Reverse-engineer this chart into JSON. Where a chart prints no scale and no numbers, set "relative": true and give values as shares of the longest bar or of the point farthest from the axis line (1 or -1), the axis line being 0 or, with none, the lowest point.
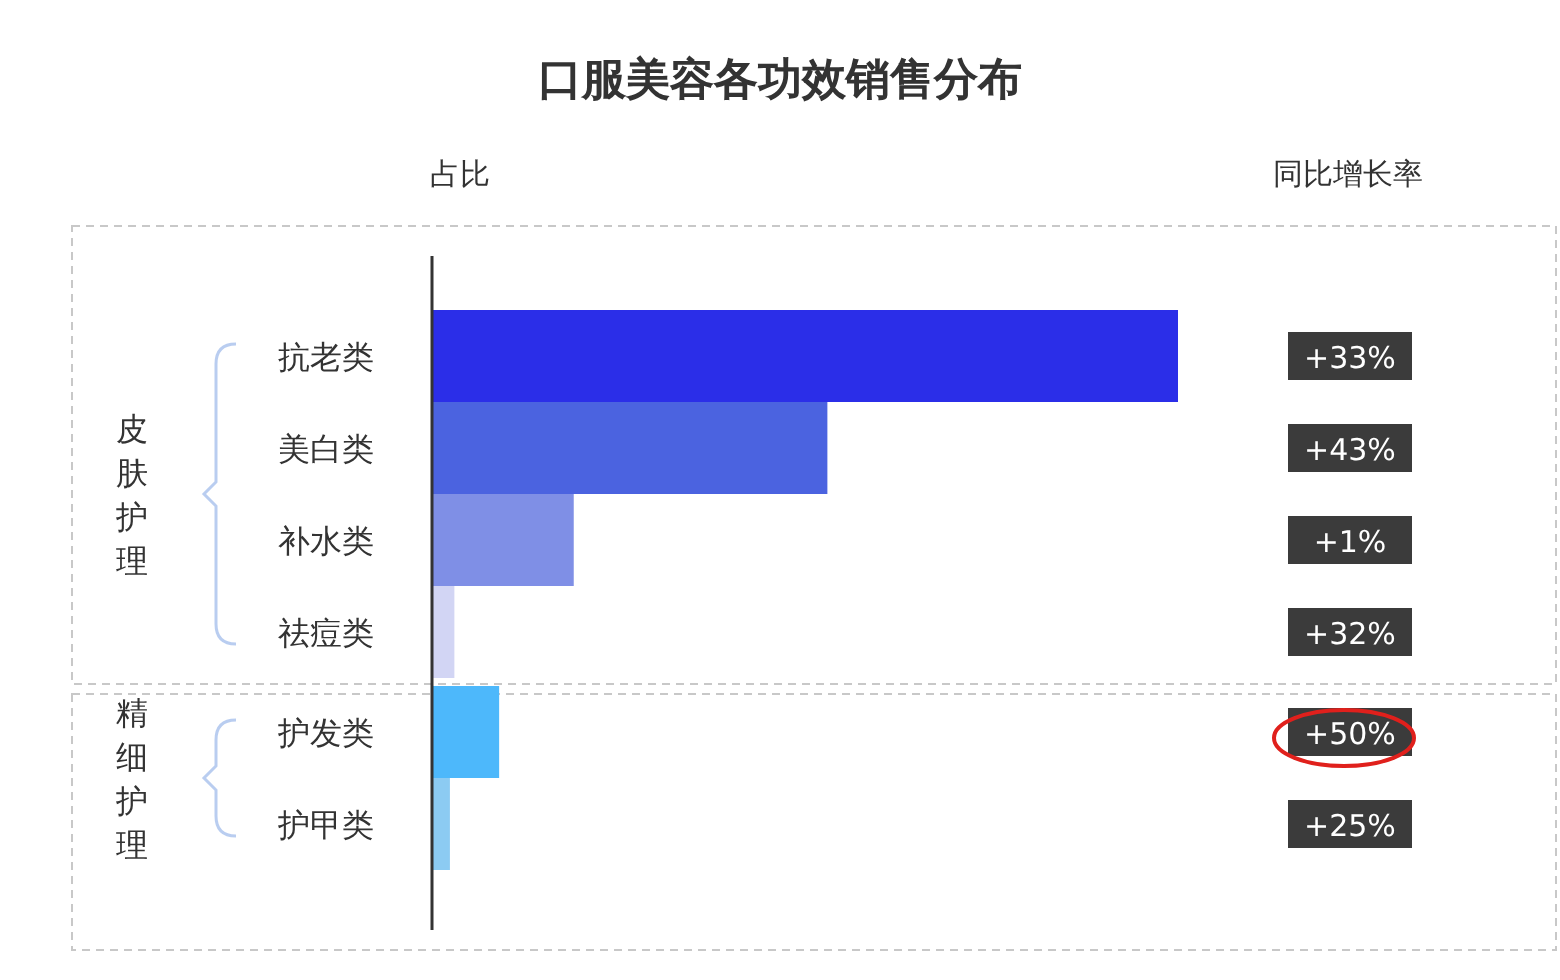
{
  "chart_data": {
    "type": "bar",
    "orientation": "horizontal",
    "relative": true,
    "title": "口服美容各功效销售分布",
    "xlabel": "占比",
    "categories": [
      "抗老类",
      "美白类",
      "补水类",
      "祛痘类",
      "护发类",
      "护甲类"
    ],
    "values": [
      1,
      0.53,
      0.19,
      0.03,
      0.09,
      0.024
    ],
    "colors": [
      "#2b2ee8",
      "#4b63e0",
      "#7f8fe6",
      "#d2d5f4",
      "#4db8fb",
      "#8ccbf2"
    ],
    "annotations": [
      "同比增长率",
      "皮肤护理",
      "精细护理",
      "+33%",
      "+43%",
      "+1%",
      "+32%",
      "+50%",
      "+25%"
    ]
  }
}
